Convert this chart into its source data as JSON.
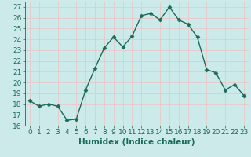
{
  "x": [
    0,
    1,
    2,
    3,
    4,
    5,
    6,
    7,
    8,
    9,
    10,
    11,
    12,
    13,
    14,
    15,
    16,
    17,
    18,
    19,
    20,
    21,
    22,
    23
  ],
  "y": [
    18.3,
    17.8,
    18.0,
    17.8,
    16.5,
    16.6,
    19.3,
    21.3,
    23.2,
    24.2,
    23.3,
    24.3,
    26.2,
    26.4,
    25.8,
    27.0,
    25.8,
    25.4,
    24.2,
    21.2,
    20.9,
    19.3,
    19.8,
    18.8
  ],
  "line_color": "#1a6b5a",
  "marker": "D",
  "marker_size": 2.5,
  "bg_color": "#cceaea",
  "grid_color": "#e8c8c8",
  "xlabel": "Humidex (Indice chaleur)",
  "ylim": [
    16,
    27.5
  ],
  "xlim": [
    -0.5,
    23.5
  ],
  "yticks": [
    16,
    17,
    18,
    19,
    20,
    21,
    22,
    23,
    24,
    25,
    26,
    27
  ],
  "xticks": [
    0,
    1,
    2,
    3,
    4,
    5,
    6,
    7,
    8,
    9,
    10,
    11,
    12,
    13,
    14,
    15,
    16,
    17,
    18,
    19,
    20,
    21,
    22,
    23
  ],
  "xtick_labels": [
    "0",
    "1",
    "2",
    "3",
    "4",
    "5",
    "6",
    "7",
    "8",
    "9",
    "10",
    "11",
    "12",
    "13",
    "14",
    "15",
    "16",
    "17",
    "18",
    "19",
    "20",
    "21",
    "22",
    "23"
  ],
  "tick_color": "#1a6b5a",
  "axis_fontsize": 6.5,
  "xlabel_fontsize": 7.5,
  "linewidth": 1.0
}
